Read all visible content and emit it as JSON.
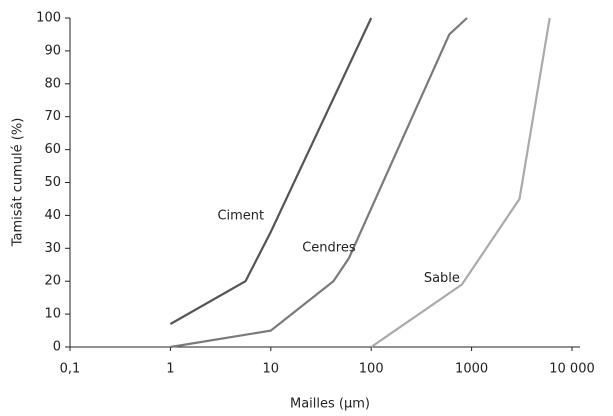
{
  "chart_data": {
    "type": "line",
    "xlabel": "Mailles (µm)",
    "ylabel": "Tamisât cumulé (%)",
    "xscale": "log",
    "xlim": [
      0.1,
      10000
    ],
    "ylim": [
      0,
      100
    ],
    "xticks": [
      {
        "value": 0.1,
        "label": "0,1"
      },
      1,
      10,
      100,
      1000,
      {
        "value": 10000,
        "label": "10 000"
      }
    ],
    "yticks": [
      0,
      10,
      20,
      30,
      40,
      50,
      60,
      70,
      80,
      90,
      100
    ],
    "grid": false,
    "series": [
      {
        "name": "Ciment",
        "color": "#555555",
        "x": [
          1,
          5.6,
          10,
          100
        ],
        "values": [
          7,
          20,
          35,
          100
        ]
      },
      {
        "name": "Cendres",
        "color": "#7a7a7a",
        "x": [
          1,
          10,
          42,
          60,
          600,
          900
        ],
        "values": [
          0,
          5,
          20,
          27,
          95,
          100
        ]
      },
      {
        "name": "Sable",
        "color": "#aaaaaa",
        "x": [
          100,
          800,
          3000,
          6000
        ],
        "values": [
          0,
          19,
          45,
          100
        ]
      }
    ]
  }
}
